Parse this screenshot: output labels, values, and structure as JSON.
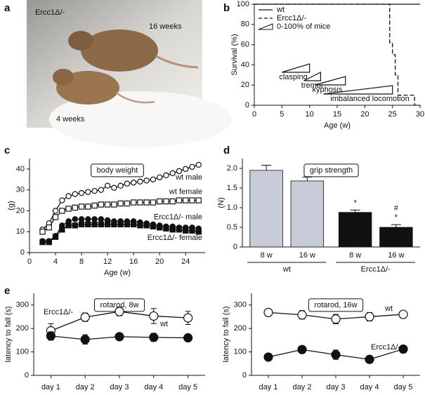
{
  "panel_labels": [
    "a",
    "b",
    "c",
    "d",
    "e"
  ],
  "photo": {
    "label": "Ercc1Δ/-",
    "annotations": [
      "16 weeks",
      "4 weeks"
    ]
  },
  "chart_data": [
    {
      "type": "line",
      "xlabel": "Age (w)",
      "ylabel": "Survival (%)",
      "xlim": [
        0,
        30
      ],
      "xticks": [
        0,
        5,
        10,
        15,
        20,
        25,
        30
      ],
      "ylim": [
        0,
        100
      ],
      "yticks": [
        0,
        20,
        40,
        60,
        80,
        100
      ],
      "legend": "upper left",
      "series": [
        {
          "name": "wt",
          "color": "#111111",
          "dash": false,
          "x": [
            0,
            30
          ],
          "values": [
            100,
            100
          ]
        },
        {
          "name": "Ercc1Δ/-",
          "color": "#111111",
          "dash": true,
          "x": [
            0,
            24.5,
            24.5,
            25,
            25,
            25.5,
            25.5,
            26,
            26,
            29,
            29,
            30
          ],
          "values": [
            100,
            100,
            62,
            62,
            50,
            50,
            30,
            30,
            10,
            10,
            0,
            0
          ]
        }
      ],
      "onset_legend": "0-100% of mice",
      "onsets": [
        {
          "label": "clasping",
          "start": 5,
          "end": 10
        },
        {
          "label": "tremor",
          "start": 9,
          "end": 12
        },
        {
          "label": "kyphosis",
          "start": 11,
          "end": 16.5
        },
        {
          "label": "imbalanced locomotion",
          "start": 12.5,
          "end": 25
        }
      ]
    },
    {
      "type": "line",
      "title": "body weight",
      "xlabel": "Age (w)",
      "ylabel": "(g)",
      "xlim": [
        0,
        27
      ],
      "xticks": [
        0,
        4,
        8,
        12,
        16,
        20,
        24
      ],
      "ylim": [
        0,
        45
      ],
      "yticks": [
        0,
        10,
        20,
        30,
        40
      ],
      "x": [
        2,
        3,
        4,
        5,
        6,
        7,
        8,
        9,
        10,
        11,
        12,
        13,
        14,
        15,
        16,
        17,
        18,
        19,
        20,
        21,
        22,
        23,
        24,
        25,
        26
      ],
      "series": [
        {
          "name": "wt male",
          "color": "#111111",
          "marker": "circle",
          "filled": false,
          "values": [
            11,
            14,
            20,
            25,
            27,
            28,
            28.5,
            29,
            29.5,
            30,
            32,
            31,
            32,
            33,
            33.5,
            34,
            34.5,
            35,
            36,
            37,
            38,
            39,
            40,
            41,
            42
          ]
        },
        {
          "name": "wt female",
          "color": "#111111",
          "marker": "square",
          "filled": false,
          "values": [
            10,
            12,
            17,
            20,
            21,
            21.5,
            22,
            22,
            22.5,
            23,
            23,
            23,
            23.5,
            23.5,
            24,
            24,
            24,
            24,
            24.5,
            24.5,
            24.5,
            25,
            25,
            25,
            25
          ]
        },
        {
          "name": "Ercc1Δ/- male",
          "color": "#111111",
          "marker": "circle",
          "filled": true,
          "values": [
            5.5,
            5.5,
            8,
            13,
            15,
            16,
            16,
            16,
            16,
            16,
            15.5,
            15,
            15,
            15,
            15,
            14.5,
            14,
            13.5,
            13,
            12.5,
            12.5,
            12,
            12,
            12,
            11.5
          ]
        },
        {
          "name": "Ercc1Δ/- female",
          "color": "#111111",
          "marker": "square",
          "filled": true,
          "values": [
            5,
            5,
            7.5,
            11,
            13,
            13,
            13.5,
            13.5,
            13.5,
            13.5,
            13.5,
            13.5,
            13.5,
            13.5,
            13.5,
            13,
            13,
            12.5,
            12,
            11.5,
            11,
            11,
            10.5,
            10.5,
            10
          ]
        }
      ]
    },
    {
      "type": "bar",
      "title": "grip strength",
      "ylabel": "(N)",
      "ylim": [
        0,
        2.25
      ],
      "yticks": [
        0,
        0.5,
        {
          "value": 1,
          "label": "1.0"
        },
        1.5,
        {
          "value": 2,
          "label": "2.0"
        }
      ],
      "categories": [
        "8 w",
        "16 w",
        "8 w",
        "16 w"
      ],
      "groups": [
        "wt",
        "Ercc1Δ/-"
      ],
      "values": [
        1.95,
        1.68,
        0.88,
        0.5
      ],
      "errors": [
        0.13,
        0.1,
        0.06,
        0.07
      ],
      "colors": [
        "#c8ccd8",
        "#c8ccd8",
        "#111111",
        "#111111"
      ],
      "bar_annotations": [
        null,
        null,
        [
          "*"
        ],
        [
          "#",
          "*"
        ]
      ]
    },
    {
      "type": "line",
      "title": "rotarod, 8w",
      "ylabel": "latency to fall (s)",
      "ylim": [
        0,
        350
      ],
      "yticks": [
        0,
        100,
        200,
        300
      ],
      "categories": [
        "day 1",
        "day 2",
        "day 3",
        "day 4",
        "day 5"
      ],
      "series": [
        {
          "name": "wt",
          "color": "#111111",
          "marker": "circle",
          "filled": false,
          "values": [
            190,
            248,
            272,
            253,
            245
          ],
          "errors": [
            30,
            18,
            18,
            32,
            28
          ]
        },
        {
          "name": "Ercc1Δ/-",
          "color": "#111111",
          "marker": "circle",
          "filled": true,
          "values": [
            168,
            153,
            165,
            162,
            160
          ],
          "errors": [
            18,
            20,
            15,
            17,
            12
          ]
        }
      ]
    },
    {
      "type": "line",
      "title": "rotarod, 16w",
      "ylabel": "latency to fall (s)",
      "ylim": [
        0,
        350
      ],
      "yticks": [
        0,
        100,
        200,
        300
      ],
      "categories": [
        "day 1",
        "day 2",
        "day 3",
        "day 4",
        "day 5"
      ],
      "series": [
        {
          "name": "wt",
          "color": "#111111",
          "marker": "circle",
          "filled": false,
          "values": [
            268,
            258,
            240,
            250,
            260
          ],
          "errors": [
            15,
            18,
            20,
            18,
            15
          ]
        },
        {
          "name": "Ercc1Δ/-",
          "color": "#111111",
          "marker": "circle",
          "filled": true,
          "values": [
            78,
            110,
            88,
            68,
            112
          ],
          "errors": [
            10,
            15,
            20,
            15,
            15
          ]
        }
      ]
    }
  ]
}
